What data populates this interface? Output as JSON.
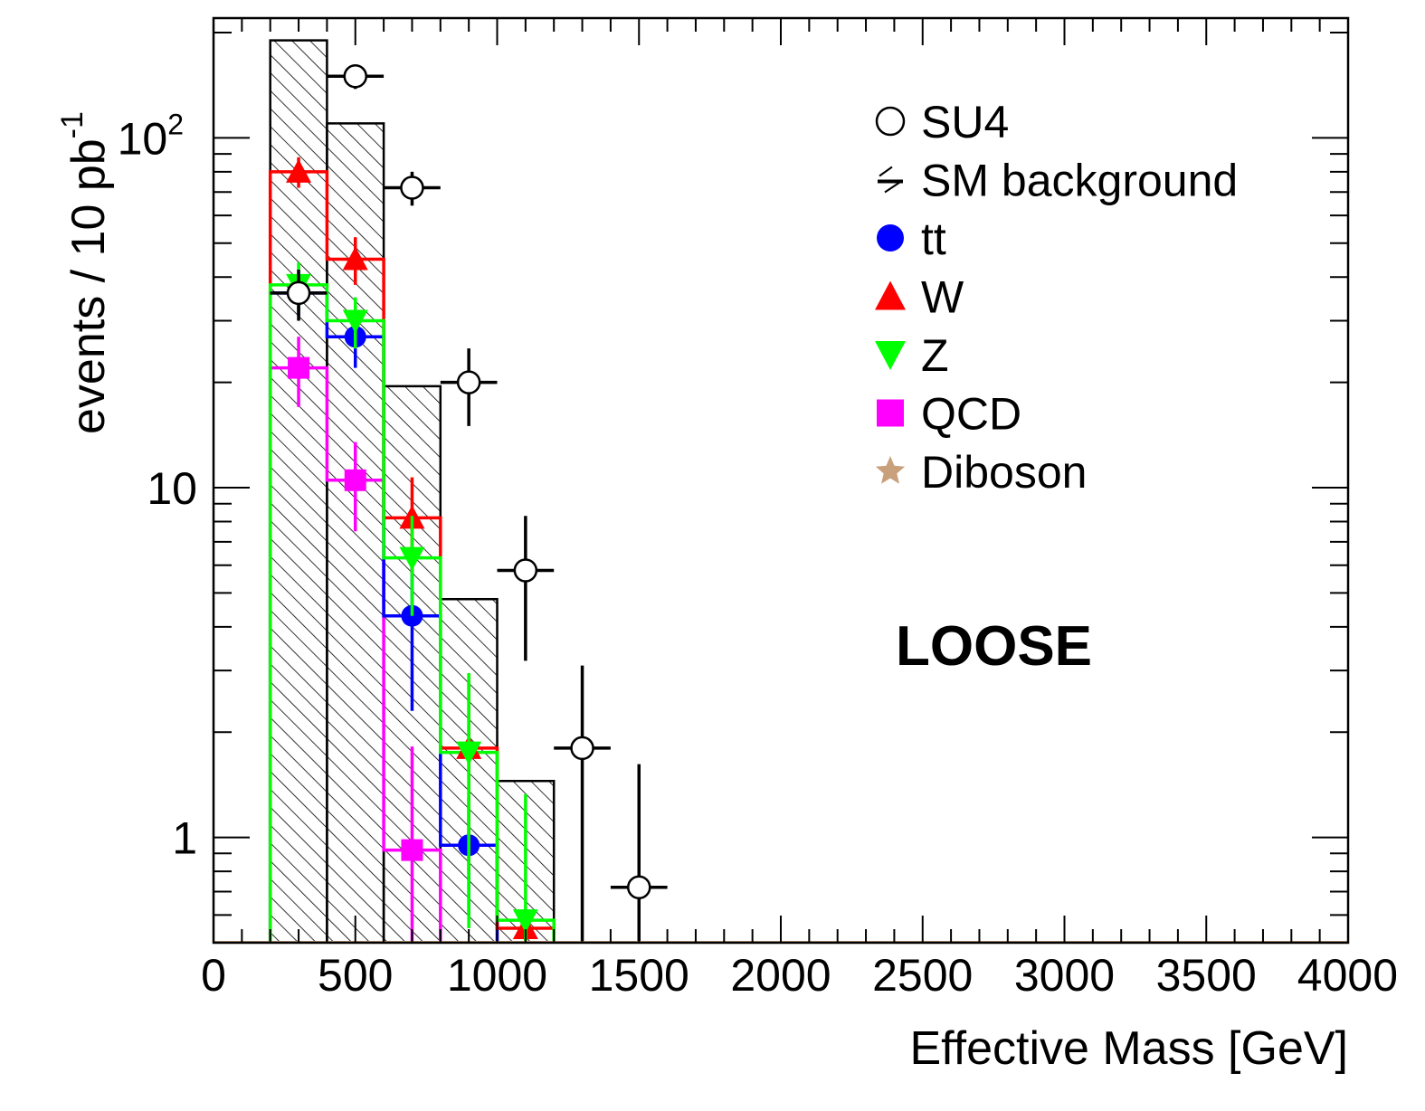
{
  "chart_data": {
    "type": "histogram",
    "xlabel": "Effective Mass [GeV]",
    "ylabel": "events / 10 pb",
    "ylabel_superscript": "-1",
    "xlim": [
      0,
      4000
    ],
    "ylim": [
      0.5,
      220
    ],
    "yscale": "log",
    "x_tick_labels": [
      "0",
      "500",
      "1000",
      "1500",
      "2000",
      "2500",
      "3000",
      "3500",
      "4000"
    ],
    "y_tick_labels": [
      {
        "value": 1,
        "label": "1"
      },
      {
        "value": 10,
        "label": "10"
      },
      {
        "value": 100,
        "label": "10",
        "sup": "2"
      }
    ],
    "bin_edges": [
      200,
      400,
      600,
      800,
      1000,
      1200,
      1400,
      1600
    ],
    "annotation": "LOOSE",
    "legend_placement": "top-right",
    "series": [
      {
        "name": "SM background",
        "kind": "hatched-histogram",
        "color": "#000000",
        "values": [
          190,
          110,
          19.5,
          4.8,
          1.45
        ]
      },
      {
        "name": "W",
        "kind": "step",
        "color": "#ff0000",
        "marker": "triangle-up",
        "values": [
          80,
          45,
          8.2,
          1.8,
          0.55
        ],
        "errors": [
          8,
          7,
          2.5,
          1.0,
          0.05
        ]
      },
      {
        "name": "Z",
        "kind": "step",
        "color": "#00ff00",
        "marker": "triangle-down",
        "values": [
          38,
          30,
          6.3,
          1.75,
          0.58
        ],
        "errors": [
          6,
          5,
          2,
          1.2,
          0.75
        ]
      },
      {
        "name": "tt",
        "kind": "step",
        "color": "#0000ff",
        "marker": "circle",
        "values": [
          36,
          27,
          4.3,
          0.95,
          null
        ],
        "errors": [
          5,
          5,
          2,
          0.35,
          null
        ]
      },
      {
        "name": "QCD",
        "kind": "step",
        "color": "#ff00ff",
        "marker": "square",
        "values": [
          22,
          10.5,
          0.92,
          null,
          null
        ],
        "errors": [
          5,
          3,
          0.9,
          null,
          null
        ]
      },
      {
        "name": "SU4",
        "kind": "points",
        "color": "#000000",
        "marker": "open-circle",
        "x": [
          300,
          500,
          700,
          900,
          1100,
          1300,
          1500
        ],
        "values": [
          36,
          150,
          72,
          20,
          5.8,
          1.8,
          0.72
        ],
        "errors_low": [
          6,
          12,
          8,
          5,
          2.6,
          1.3,
          0.72
        ],
        "errors_high": [
          6,
          12,
          8,
          5,
          2.5,
          1.3,
          0.9
        ]
      },
      {
        "name": "Diboson",
        "kind": "points",
        "color": "#c8a07c",
        "marker": "star",
        "x": [],
        "values": []
      }
    ],
    "legend_order": [
      "SU4",
      "SM background",
      "tt",
      "W",
      "Z",
      "QCD",
      "Diboson"
    ]
  }
}
